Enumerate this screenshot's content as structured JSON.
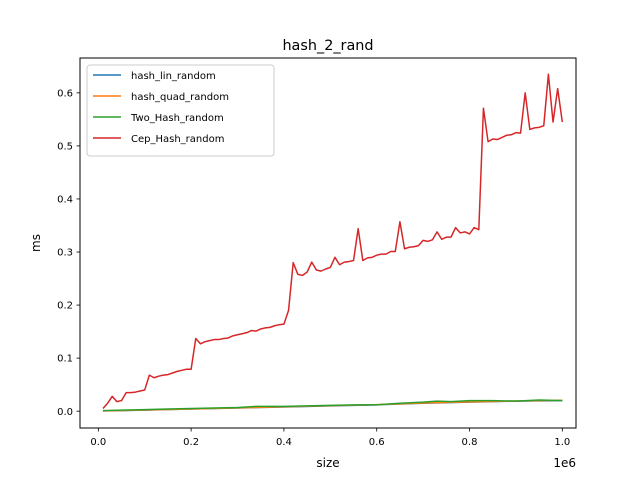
{
  "chart_data": {
    "type": "line",
    "title": "hash_2_rand",
    "xlabel": "size",
    "ylabel": "ms",
    "x_offset_label": "1e6",
    "x_scale": 1000000,
    "xlim": [
      -0.0395,
      1.0295
    ],
    "ylim": [
      -0.0317,
      0.6657
    ],
    "x_ticks": [
      0.0,
      0.2,
      0.4,
      0.6,
      0.8,
      1.0
    ],
    "x_tick_labels": [
      "0.0",
      "0.2",
      "0.4",
      "0.6",
      "0.8",
      "1.0"
    ],
    "y_ticks": [
      0.0,
      0.1,
      0.2,
      0.3,
      0.4,
      0.5,
      0.6
    ],
    "y_tick_labels": [
      "0.0",
      "0.1",
      "0.2",
      "0.3",
      "0.4",
      "0.5",
      "0.6"
    ],
    "grid": false,
    "legend_position": "upper-left",
    "series": [
      {
        "name": "hash_lin_random",
        "color": "#1f77b4",
        "x": [
          0.01,
          0.1,
          0.2,
          0.3,
          0.4,
          0.5,
          0.6,
          0.7,
          0.8,
          0.9,
          1.0
        ],
        "y": [
          0.0005,
          0.002,
          0.004,
          0.006,
          0.008,
          0.01,
          0.012,
          0.015,
          0.017,
          0.019,
          0.02
        ]
      },
      {
        "name": "hash_quad_random",
        "color": "#ff7f0e",
        "x": [
          0.01,
          0.1,
          0.2,
          0.3,
          0.4,
          0.5,
          0.6,
          0.7,
          0.8,
          0.9,
          1.0
        ],
        "y": [
          0.0006,
          0.0022,
          0.0042,
          0.0062,
          0.0083,
          0.0104,
          0.0124,
          0.0153,
          0.0175,
          0.0193,
          0.0205
        ]
      },
      {
        "name": "Two_Hash_random",
        "color": "#2ca02c",
        "x": [
          0.01,
          0.05,
          0.1,
          0.15,
          0.2,
          0.25,
          0.3,
          0.34,
          0.4,
          0.45,
          0.5,
          0.55,
          0.6,
          0.65,
          0.7,
          0.73,
          0.76,
          0.8,
          0.85,
          0.9,
          0.95,
          1.0
        ],
        "y": [
          0.001,
          0.002,
          0.003,
          0.004,
          0.005,
          0.006,
          0.007,
          0.009,
          0.009,
          0.01,
          0.011,
          0.012,
          0.012,
          0.015,
          0.017,
          0.019,
          0.018,
          0.02,
          0.02,
          0.019,
          0.021,
          0.02
        ]
      },
      {
        "name": "Cep_Hash_random",
        "color": "#d62728",
        "x": [
          0.01,
          0.02,
          0.03,
          0.04,
          0.05,
          0.06,
          0.07,
          0.08,
          0.09,
          0.1,
          0.11,
          0.12,
          0.13,
          0.14,
          0.15,
          0.16,
          0.17,
          0.18,
          0.19,
          0.2,
          0.21,
          0.22,
          0.23,
          0.24,
          0.25,
          0.26,
          0.27,
          0.28,
          0.29,
          0.3,
          0.31,
          0.32,
          0.33,
          0.34,
          0.35,
          0.36,
          0.37,
          0.38,
          0.39,
          0.4,
          0.41,
          0.42,
          0.43,
          0.44,
          0.45,
          0.46,
          0.47,
          0.48,
          0.49,
          0.5,
          0.51,
          0.52,
          0.53,
          0.54,
          0.55,
          0.56,
          0.57,
          0.58,
          0.59,
          0.6,
          0.61,
          0.62,
          0.63,
          0.64,
          0.65,
          0.66,
          0.67,
          0.68,
          0.69,
          0.7,
          0.71,
          0.72,
          0.73,
          0.74,
          0.75,
          0.76,
          0.77,
          0.78,
          0.79,
          0.8,
          0.81,
          0.82,
          0.83,
          0.84,
          0.85,
          0.86,
          0.87,
          0.88,
          0.89,
          0.9,
          0.91,
          0.92,
          0.93,
          0.94,
          0.95,
          0.96,
          0.97,
          0.98,
          0.99,
          1.0
        ],
        "y": [
          0.005,
          0.015,
          0.028,
          0.018,
          0.02,
          0.035,
          0.035,
          0.036,
          0.038,
          0.04,
          0.068,
          0.063,
          0.066,
          0.068,
          0.069,
          0.072,
          0.075,
          0.077,
          0.079,
          0.079,
          0.137,
          0.127,
          0.131,
          0.133,
          0.135,
          0.135,
          0.137,
          0.138,
          0.142,
          0.144,
          0.146,
          0.148,
          0.152,
          0.151,
          0.155,
          0.157,
          0.158,
          0.161,
          0.163,
          0.164,
          0.19,
          0.28,
          0.258,
          0.256,
          0.262,
          0.281,
          0.266,
          0.264,
          0.268,
          0.271,
          0.29,
          0.276,
          0.281,
          0.282,
          0.284,
          0.344,
          0.284,
          0.289,
          0.29,
          0.294,
          0.296,
          0.296,
          0.301,
          0.301,
          0.357,
          0.306,
          0.309,
          0.31,
          0.312,
          0.322,
          0.32,
          0.323,
          0.338,
          0.324,
          0.328,
          0.328,
          0.346,
          0.336,
          0.338,
          0.334,
          0.346,
          0.342,
          0.571,
          0.508,
          0.513,
          0.512,
          0.516,
          0.52,
          0.521,
          0.525,
          0.524,
          0.6,
          0.531,
          0.534,
          0.535,
          0.538,
          0.635,
          0.545,
          0.608,
          0.545
        ]
      }
    ]
  }
}
